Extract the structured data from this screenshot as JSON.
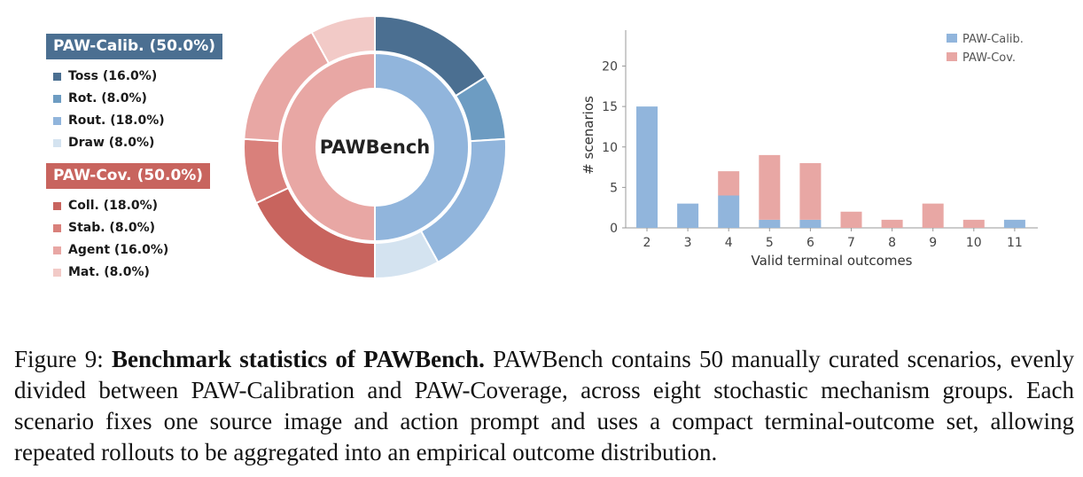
{
  "colors": {
    "calib_header": "#4b6f91",
    "cov_header": "#c8645e",
    "bar_calib": "#91b5dc",
    "bar_cov": "#e8a7a4"
  },
  "legend": {
    "calib_header": "PAW-Calib. (50.0%)",
    "cov_header": "PAW-Cov. (50.0%)",
    "calib_items": [
      {
        "label": "Toss (16.0%)",
        "color": "#4b6f91"
      },
      {
        "label": "Rot. (8.0%)",
        "color": "#6d9cc2"
      },
      {
        "label": "Rout. (18.0%)",
        "color": "#91b5dc"
      },
      {
        "label": "Draw (8.0%)",
        "color": "#d4e3f0"
      }
    ],
    "cov_items": [
      {
        "label": "Coll. (18.0%)",
        "color": "#c8645e"
      },
      {
        "label": "Stab. (8.0%)",
        "color": "#d9807b"
      },
      {
        "label": "Agent (16.0%)",
        "color": "#e8a7a4"
      },
      {
        "label": "Mat. (8.0%)",
        "color": "#f2cac7"
      }
    ]
  },
  "chart_data": [
    {
      "type": "pie",
      "center_label": "PAWBench",
      "inner_ring": [
        {
          "name": "PAW-Calib.",
          "value": 50.0,
          "color": "#91b5dc"
        },
        {
          "name": "PAW-Cov.",
          "value": 50.0,
          "color": "#e8a7a4"
        }
      ],
      "outer_ring": [
        {
          "name": "Toss",
          "value": 16.0,
          "color": "#4b6f91"
        },
        {
          "name": "Rot.",
          "value": 8.0,
          "color": "#6d9cc2"
        },
        {
          "name": "Rout.",
          "value": 18.0,
          "color": "#91b5dc"
        },
        {
          "name": "Draw",
          "value": 8.0,
          "color": "#d4e3f0"
        },
        {
          "name": "Coll.",
          "value": 18.0,
          "color": "#c8645e"
        },
        {
          "name": "Stab.",
          "value": 8.0,
          "color": "#d9807b"
        },
        {
          "name": "Agent",
          "value": 16.0,
          "color": "#e8a7a4"
        },
        {
          "name": "Mat.",
          "value": 8.0,
          "color": "#f2cac7"
        }
      ]
    },
    {
      "type": "bar",
      "stacked": true,
      "categories": [
        "2",
        "3",
        "4",
        "5",
        "6",
        "7",
        "8",
        "9",
        "10",
        "11"
      ],
      "series": [
        {
          "name": "PAW-Calib.",
          "values": [
            15,
            3,
            4,
            1,
            1,
            0,
            0,
            0,
            0,
            1
          ],
          "color": "#91b5dc"
        },
        {
          "name": "PAW-Cov.",
          "values": [
            0,
            0,
            3,
            8,
            7,
            2,
            1,
            3,
            1,
            0
          ],
          "color": "#e8a7a4"
        }
      ],
      "xlabel": "Valid terminal outcomes",
      "ylabel": "# scenarios",
      "ylim": [
        0,
        24
      ],
      "yticks": [
        0,
        5,
        10,
        15,
        20
      ],
      "legend_position": "top-right"
    }
  ],
  "caption": {
    "prefix": "Figure 9: ",
    "bold": "Benchmark statistics of PAWBench.",
    "text": " PAWBench contains 50 manually curated scenarios, evenly divided between PAW-Calibration and PAW-Coverage, across eight stochastic mechanism groups. Each scenario fixes one source image and action prompt and uses a compact terminal-outcome set, allowing repeated rollouts to be aggregated into an empirical outcome distribution."
  }
}
